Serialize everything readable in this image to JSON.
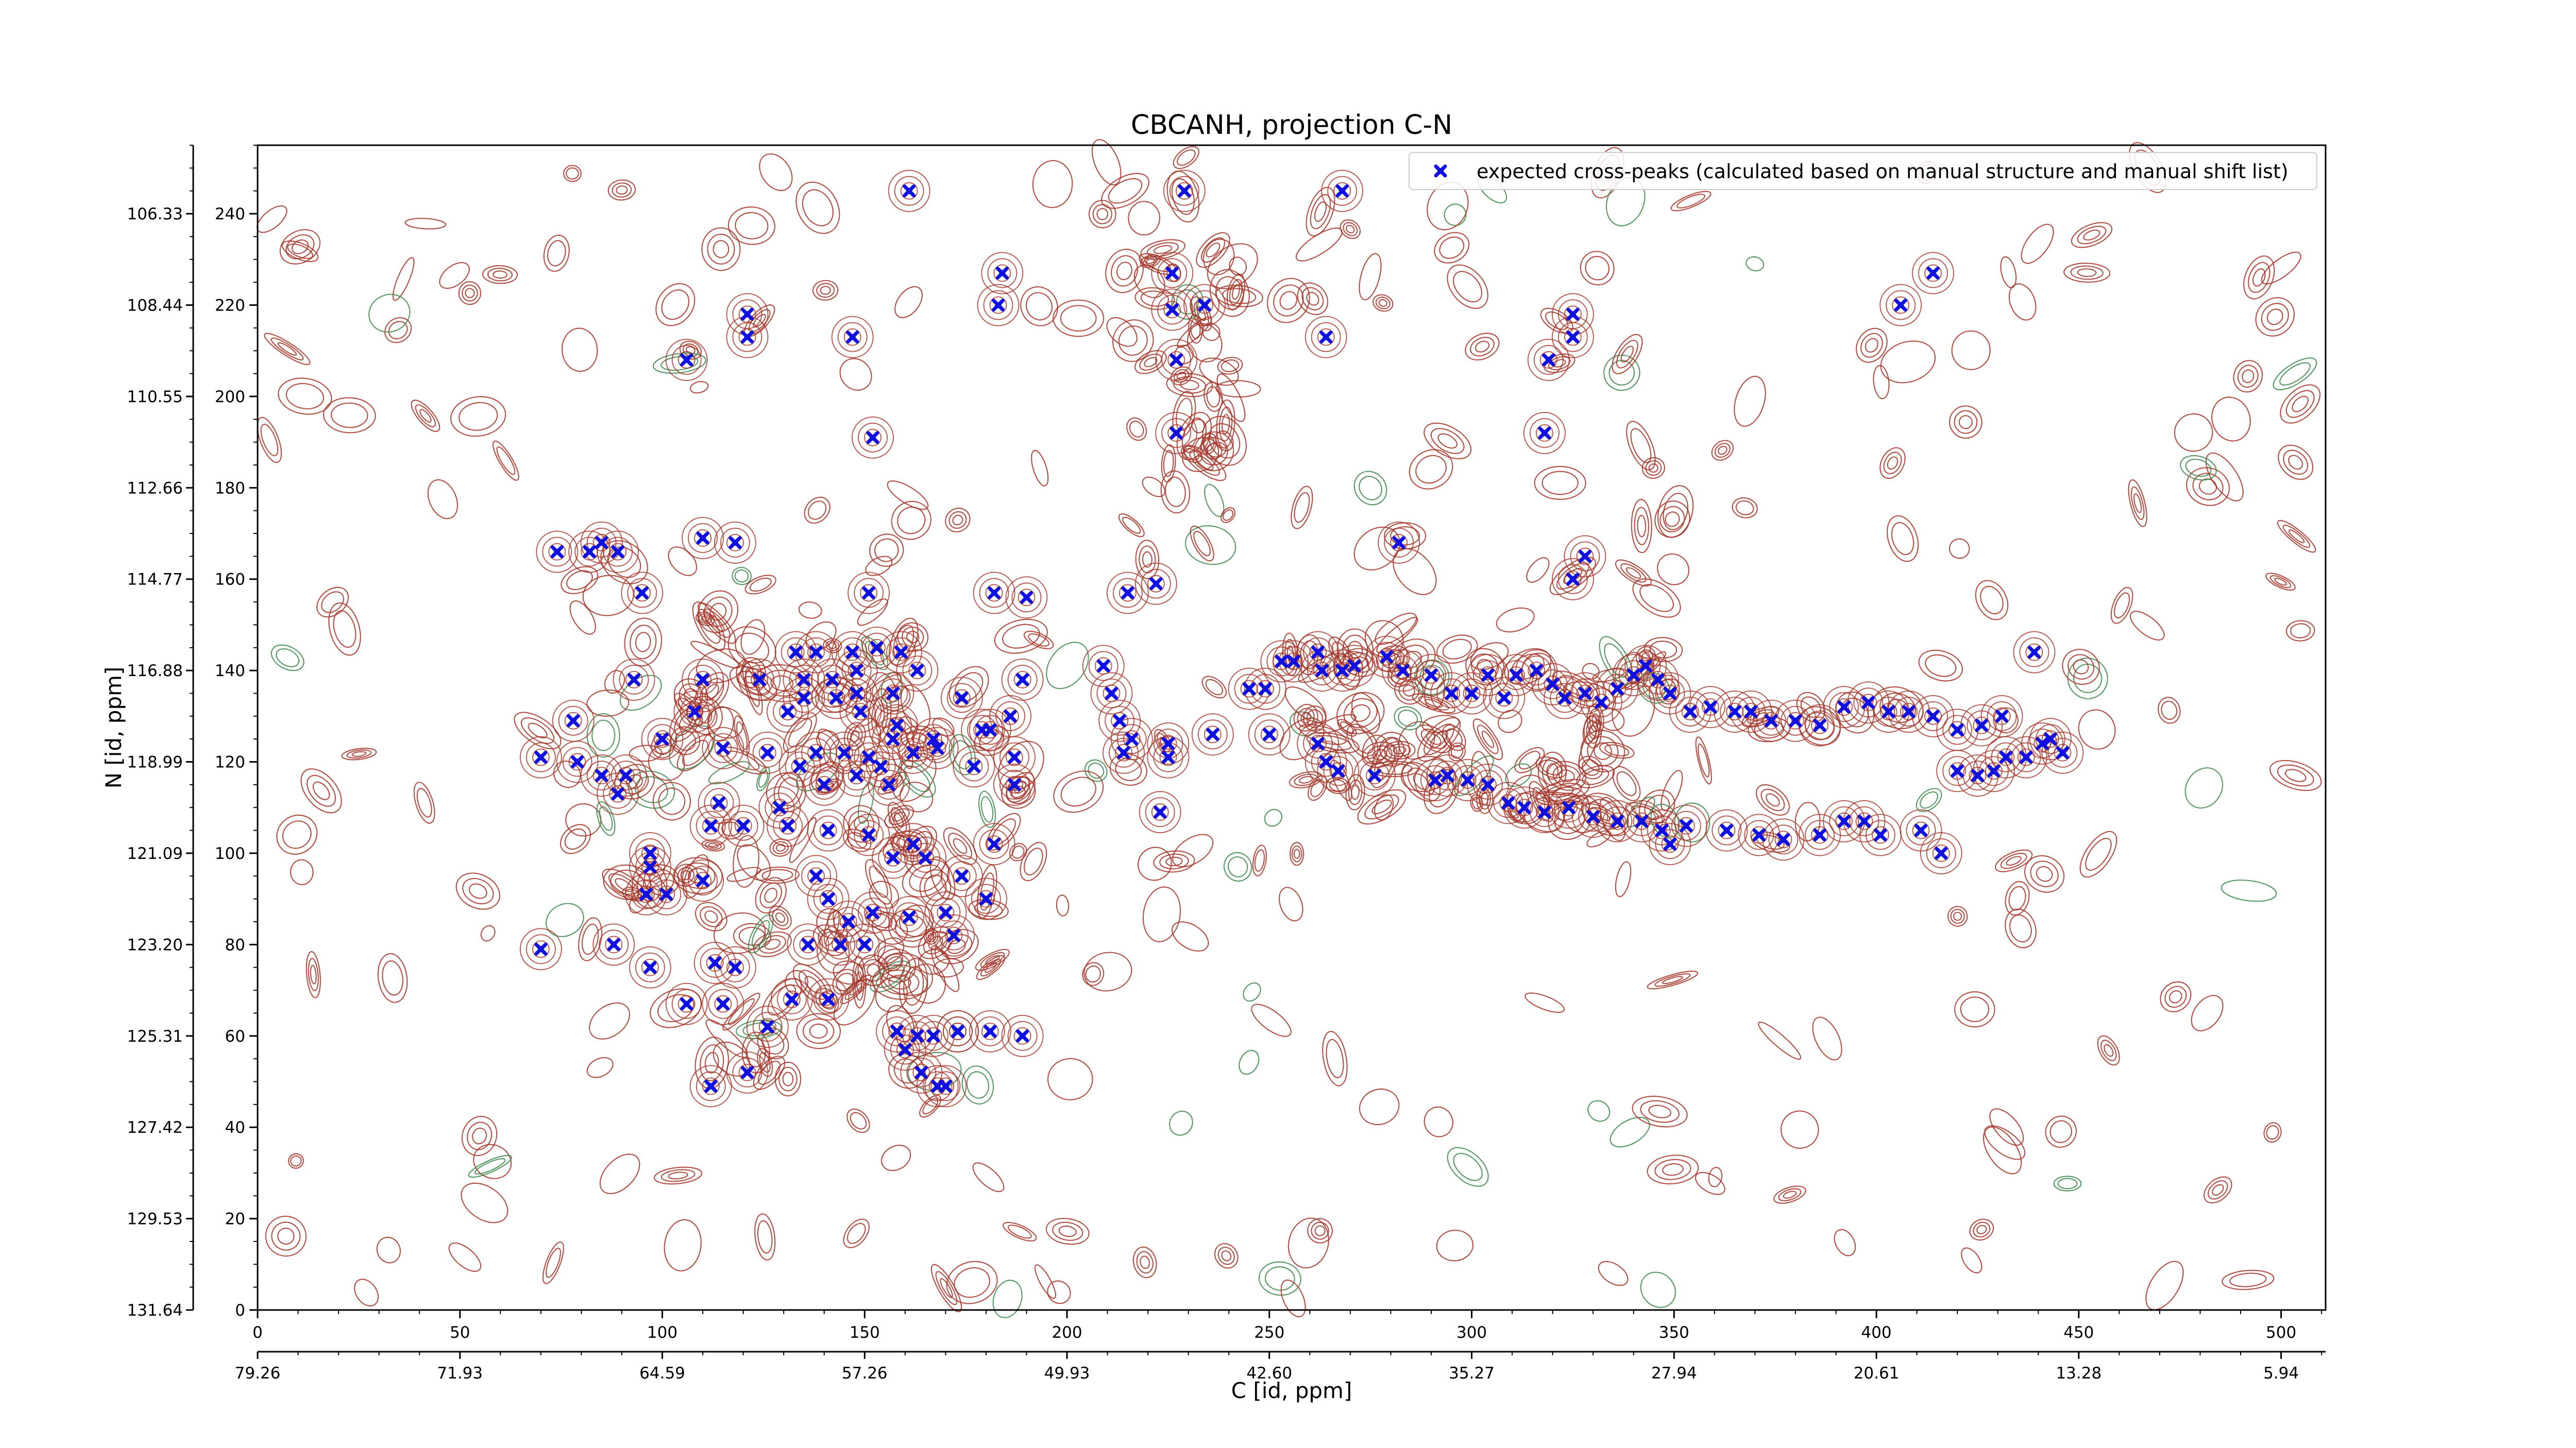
{
  "chart_data": {
    "type": "scatter",
    "title": "CBCANH, projection C-N",
    "xlabel": "C [id, ppm]",
    "ylabel": "N [id, ppm]",
    "xlim": [
      0,
      511
    ],
    "ylim": [
      0,
      255
    ],
    "x_ticks": [
      0,
      50,
      100,
      150,
      200,
      250,
      300,
      350,
      400,
      450,
      500
    ],
    "y_ticks": [
      0,
      20,
      40,
      60,
      80,
      100,
      120,
      140,
      160,
      180,
      200,
      220,
      240
    ],
    "x_ppm_ticks": [
      "79.26",
      "71.93",
      "64.59",
      "57.26",
      "49.93",
      "42.60",
      "35.27",
      "27.94",
      "20.61",
      "13.28",
      "5.94"
    ],
    "y_ppm_ticks": [
      "131.64",
      "129.53",
      "127.42",
      "125.31",
      "123.20",
      "121.09",
      "118.99",
      "116.88",
      "114.77",
      "112.66",
      "110.55",
      "108.44",
      "106.33"
    ],
    "legend": {
      "position": "top-right",
      "label": "expected cross-peaks (calculated based on manual structure and manual shift list)"
    },
    "colors": {
      "marker": "#1010e0",
      "positive_contour": "#a3372b",
      "negative_contour": "#3f8a4f"
    },
    "series": [
      {
        "name": "expected cross-peaks (calculated based on manual structure and manual shift list)",
        "points": [
          [
            161,
            245
          ],
          [
            229,
            245
          ],
          [
            268,
            245
          ],
          [
            184,
            227
          ],
          [
            226,
            227
          ],
          [
            183,
            220
          ],
          [
            226,
            219
          ],
          [
            234,
            220
          ],
          [
            414,
            227
          ],
          [
            406,
            220
          ],
          [
            121,
            218
          ],
          [
            325,
            218
          ],
          [
            147,
            213
          ],
          [
            121,
            213
          ],
          [
            264,
            213
          ],
          [
            325,
            213
          ],
          [
            106,
            208
          ],
          [
            227,
            208
          ],
          [
            319,
            208
          ],
          [
            227,
            192
          ],
          [
            152,
            191
          ],
          [
            318,
            192
          ],
          [
            74,
            166
          ],
          [
            82,
            166
          ],
          [
            85,
            168
          ],
          [
            89,
            166
          ],
          [
            110,
            169
          ],
          [
            118,
            168
          ],
          [
            282,
            168
          ],
          [
            95,
            157
          ],
          [
            151,
            157
          ],
          [
            182,
            157
          ],
          [
            190,
            156
          ],
          [
            222,
            159
          ],
          [
            215,
            157
          ],
          [
            328,
            165
          ],
          [
            325,
            160
          ],
          [
            439,
            144
          ],
          [
            133,
            144
          ],
          [
            138,
            144
          ],
          [
            147,
            144
          ],
          [
            148,
            140
          ],
          [
            135,
            138
          ],
          [
            142,
            138
          ],
          [
            153,
            145
          ],
          [
            159,
            144
          ],
          [
            163,
            140
          ],
          [
            93,
            138
          ],
          [
            110,
            138
          ],
          [
            124,
            138
          ],
          [
            135,
            134
          ],
          [
            143,
            134
          ],
          [
            148,
            135
          ],
          [
            157,
            135
          ],
          [
            174,
            134
          ],
          [
            189,
            138
          ],
          [
            186,
            130
          ],
          [
            108,
            131
          ],
          [
            131,
            131
          ],
          [
            149,
            131
          ],
          [
            158,
            128
          ],
          [
            179,
            127
          ],
          [
            167,
            125
          ],
          [
            78,
            129
          ],
          [
            100,
            125
          ],
          [
            157,
            125
          ],
          [
            168,
            123
          ],
          [
            181,
            127
          ],
          [
            187,
            121
          ],
          [
            115,
            123
          ],
          [
            126,
            122
          ],
          [
            138,
            122
          ],
          [
            145,
            122
          ],
          [
            151,
            121
          ],
          [
            162,
            122
          ],
          [
            177,
            119
          ],
          [
            187,
            115
          ],
          [
            70,
            121
          ],
          [
            79,
            120
          ],
          [
            91,
            117
          ],
          [
            89,
            113
          ],
          [
            85,
            117
          ],
          [
            134,
            119
          ],
          [
            140,
            115
          ],
          [
            148,
            117
          ],
          [
            154,
            119
          ],
          [
            156,
            115
          ],
          [
            114,
            111
          ],
          [
            112,
            106
          ],
          [
            120,
            106
          ],
          [
            129,
            110
          ],
          [
            131,
            106
          ],
          [
            141,
            105
          ],
          [
            151,
            104
          ],
          [
            157,
            99
          ],
          [
            162,
            102
          ],
          [
            165,
            99
          ],
          [
            174,
            95
          ],
          [
            180,
            90
          ],
          [
            182,
            102
          ],
          [
            97,
            100
          ],
          [
            97,
            97
          ],
          [
            96,
            91
          ],
          [
            101,
            91
          ],
          [
            110,
            94
          ],
          [
            138,
            95
          ],
          [
            141,
            90
          ],
          [
            146,
            85
          ],
          [
            152,
            87
          ],
          [
            161,
            86
          ],
          [
            170,
            87
          ],
          [
            172,
            82
          ],
          [
            136,
            80
          ],
          [
            144,
            80
          ],
          [
            70,
            79
          ],
          [
            88,
            80
          ],
          [
            97,
            75
          ],
          [
            113,
            76
          ],
          [
            118,
            75
          ],
          [
            150,
            80
          ],
          [
            132,
            68
          ],
          [
            141,
            68
          ],
          [
            106,
            67
          ],
          [
            126,
            62
          ],
          [
            115,
            67
          ],
          [
            160,
            57
          ],
          [
            158,
            61
          ],
          [
            163,
            60
          ],
          [
            167,
            60
          ],
          [
            173,
            61
          ],
          [
            173,
            61
          ],
          [
            181,
            61
          ],
          [
            189,
            60
          ],
          [
            164,
            52
          ],
          [
            168,
            49
          ],
          [
            170,
            49
          ],
          [
            112,
            49
          ],
          [
            121,
            52
          ],
          [
            209,
            141
          ],
          [
            211,
            135
          ],
          [
            213,
            129
          ],
          [
            216,
            125
          ],
          [
            214,
            122
          ],
          [
            223,
            109
          ],
          [
            225,
            121
          ],
          [
            225,
            124
          ],
          [
            236,
            126
          ],
          [
            250,
            126
          ],
          [
            262,
            124
          ],
          [
            264,
            120
          ],
          [
            267,
            118
          ],
          [
            276,
            117
          ],
          [
            291,
            116
          ],
          [
            294,
            117
          ],
          [
            299,
            116
          ],
          [
            304,
            115
          ],
          [
            309,
            111
          ],
          [
            313,
            110
          ],
          [
            318,
            109
          ],
          [
            324,
            110
          ],
          [
            330,
            108
          ],
          [
            336,
            107
          ],
          [
            342,
            107
          ],
          [
            347,
            105
          ],
          [
            349,
            102
          ],
          [
            353,
            106
          ],
          [
            363,
            105
          ],
          [
            371,
            104
          ],
          [
            377,
            103
          ],
          [
            386,
            104
          ],
          [
            392,
            107
          ],
          [
            397,
            107
          ],
          [
            401,
            104
          ],
          [
            411,
            105
          ],
          [
            245,
            136
          ],
          [
            249,
            136
          ],
          [
            253,
            142
          ],
          [
            256,
            142
          ],
          [
            262,
            144
          ],
          [
            263,
            140
          ],
          [
            268,
            140
          ],
          [
            271,
            141
          ],
          [
            279,
            143
          ],
          [
            283,
            140
          ],
          [
            290,
            139
          ],
          [
            295,
            135
          ],
          [
            300,
            135
          ],
          [
            304,
            139
          ],
          [
            308,
            134
          ],
          [
            311,
            139
          ],
          [
            316,
            140
          ],
          [
            320,
            137
          ],
          [
            323,
            134
          ],
          [
            328,
            135
          ],
          [
            332,
            133
          ],
          [
            336,
            136
          ],
          [
            340,
            139
          ],
          [
            343,
            141
          ],
          [
            346,
            138
          ],
          [
            349,
            135
          ],
          [
            354,
            131
          ],
          [
            359,
            132
          ],
          [
            365,
            131
          ],
          [
            369,
            131
          ],
          [
            374,
            129
          ],
          [
            380,
            129
          ],
          [
            386,
            128
          ],
          [
            392,
            132
          ],
          [
            398,
            133
          ],
          [
            403,
            131
          ],
          [
            408,
            131
          ],
          [
            414,
            130
          ],
          [
            420,
            127
          ],
          [
            426,
            128
          ],
          [
            431,
            130
          ],
          [
            416,
            100
          ],
          [
            420,
            118
          ],
          [
            425,
            117
          ],
          [
            429,
            118
          ],
          [
            432,
            121
          ],
          [
            437,
            121
          ],
          [
            441,
            124
          ],
          [
            443,
            125
          ],
          [
            446,
            122
          ]
        ]
      }
    ],
    "marker_shape": "x-filled",
    "grid": false
  }
}
